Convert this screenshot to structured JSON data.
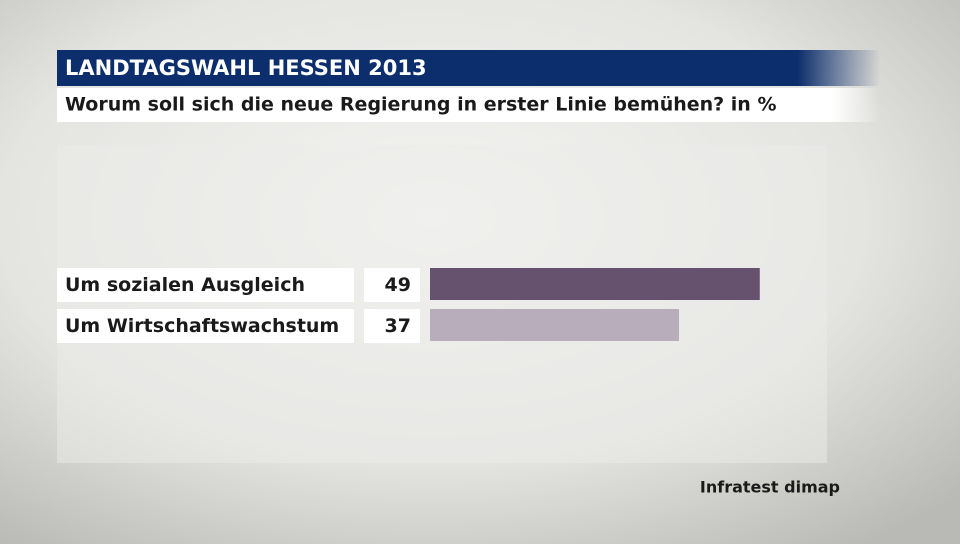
{
  "chart_data": {
    "type": "bar",
    "orientation": "horizontal",
    "title": "LANDTAGSWAHL HESSEN 2013",
    "subtitle": "Worum soll sich die neue Regierung in erster Linie bemühen?  in %",
    "categories": [
      "Um sozialen Ausgleich",
      "Um Wirtschaftswachstum"
    ],
    "values": [
      49,
      37
    ],
    "colors": [
      "#66526f",
      "#b8aebb"
    ],
    "source": "Infratest dimap"
  }
}
